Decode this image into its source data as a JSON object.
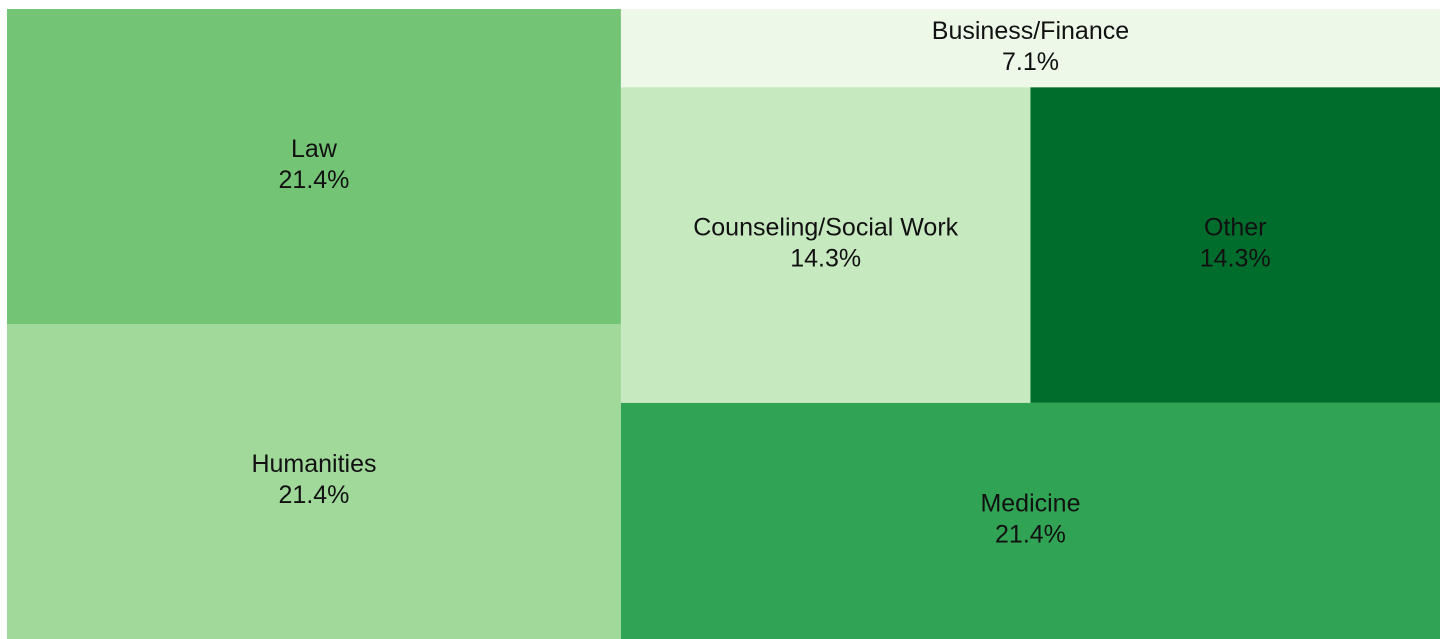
{
  "chart_data": {
    "type": "treemap",
    "categories": [
      "Law",
      "Humanities",
      "Business/Finance",
      "Counseling/Social Work",
      "Other",
      "Medicine"
    ],
    "values": [
      21.4,
      21.4,
      7.1,
      14.3,
      14.3,
      21.4
    ],
    "value_labels": [
      "21.4%",
      "21.4%",
      "7.1%",
      "14.3%",
      "14.3%",
      "21.4%"
    ],
    "colors": [
      "#74c476",
      "#a1d99b",
      "#edf8e9",
      "#c7e9c0",
      "#006d2c",
      "#31a354"
    ]
  }
}
